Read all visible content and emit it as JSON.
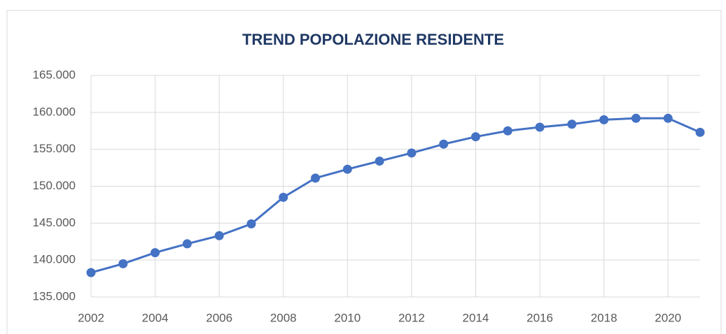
{
  "chart_data": {
    "type": "line",
    "title": "TREND POPOLAZIONE RESIDENTE",
    "x": [
      2002,
      2003,
      2004,
      2005,
      2006,
      2007,
      2008,
      2009,
      2010,
      2011,
      2012,
      2013,
      2014,
      2015,
      2016,
      2017,
      2018,
      2019,
      2020,
      2021
    ],
    "series": [
      {
        "name": "Popolazione residente",
        "color": "#4472c4",
        "values": [
          138300,
          139500,
          141000,
          142200,
          143300,
          144900,
          148500,
          151100,
          152300,
          153400,
          154500,
          155700,
          156700,
          157500,
          158000,
          158400,
          159000,
          159200,
          159200,
          157300
        ]
      }
    ],
    "xlim": [
      2002,
      2021
    ],
    "xticks": [
      2002,
      2004,
      2006,
      2008,
      2010,
      2012,
      2014,
      2016,
      2018,
      2020
    ],
    "ylim": [
      135000,
      165000
    ],
    "yticks": [
      {
        "value": 135000,
        "label": "135.000"
      },
      {
        "value": 140000,
        "label": "140.000"
      },
      {
        "value": 145000,
        "label": "145.000"
      },
      {
        "value": 150000,
        "label": "150.000"
      },
      {
        "value": 155000,
        "label": "155.000"
      },
      {
        "value": 160000,
        "label": "160.000"
      },
      {
        "value": 165000,
        "label": "165.000"
      }
    ],
    "grid": true
  }
}
